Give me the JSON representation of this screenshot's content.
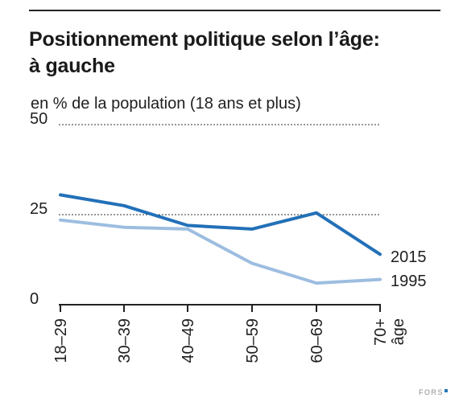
{
  "title_line1": "Positionnement politique selon l’âge:",
  "title_line2": "à gauche",
  "subtitle": "en % de la population (18 ans et plus)",
  "brand": "FORS",
  "colors": {
    "2015": "#2270b8",
    "1995": "#9dbde0",
    "axis": "#222222",
    "grid": "#333333"
  },
  "chart_data": {
    "type": "line",
    "title": "Positionnement politique selon l’âge: à gauche",
    "ylabel": "en % de la population (18 ans et plus)",
    "xlabel": "âge",
    "categories": [
      "18–29",
      "30–39",
      "40–49",
      "50–59",
      "60–69",
      "70+"
    ],
    "ylim": [
      0,
      50
    ],
    "yticks": [
      0,
      25,
      50
    ],
    "gridlines": [
      25,
      50
    ],
    "series": [
      {
        "name": "2015",
        "values": [
          30.5,
          27.5,
          22,
          21,
          25.5,
          14
        ],
        "color": "#2270b8"
      },
      {
        "name": "1995",
        "values": [
          23.5,
          21.5,
          21,
          11.5,
          6,
          7
        ],
        "color": "#9dbde0"
      }
    ]
  }
}
